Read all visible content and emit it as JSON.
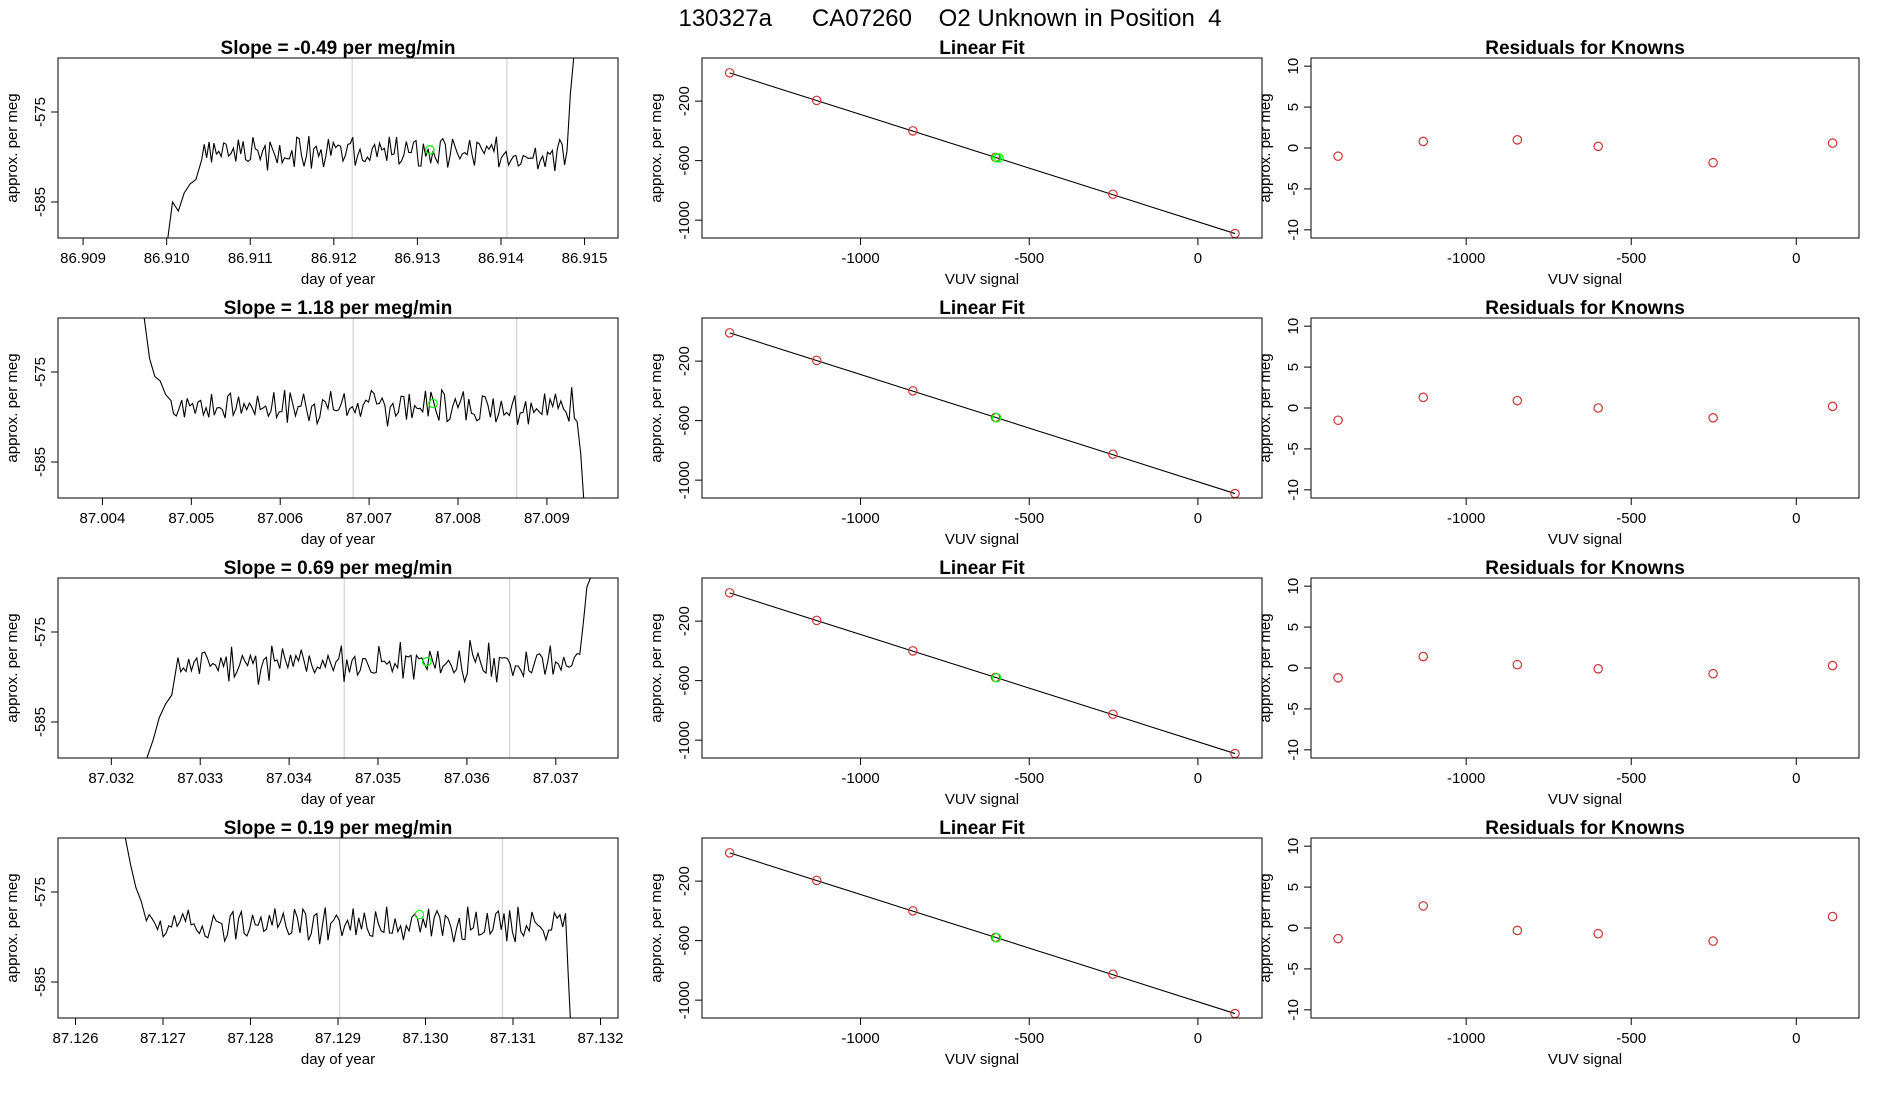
{
  "figure": {
    "title": "130327a      CA07260    O2 Unknown in Position  4"
  },
  "colors": {
    "trace": "#000000",
    "gridline": "#d3d3d3",
    "known_points": "#cd3333",
    "unknown_points": "#00ff00"
  },
  "chart_data": [
    {
      "type": "line",
      "row": 0,
      "col": 0,
      "title": "Slope =  -0.49  per meg/min",
      "xlabel": "day of year",
      "ylabel": "approx. per meg",
      "xlim": [
        86.9087,
        86.9154
      ],
      "ylim": [
        -589,
        -569
      ],
      "xticks": [
        86.909,
        86.91,
        86.911,
        86.912,
        86.913,
        86.914,
        86.915
      ],
      "xticklabels": [
        "86.909",
        "86.910",
        "86.911",
        "86.912",
        "86.913",
        "86.914",
        "86.915"
      ],
      "yticks": [
        -575,
        -585
      ],
      "yticklabels": [
        "-575",
        "-585"
      ],
      "vlines": [
        86.91222,
        86.91407
      ],
      "trace": {
        "start": 86.91,
        "end": 86.91483,
        "mean": -579.5,
        "amp": 1.8,
        "seed": 3,
        "lead": [
          -590,
          -585,
          -586,
          -584,
          -583,
          -582.5
        ],
        "lead_step": 7e-05,
        "tail": [
          -573,
          -569
        ],
        "tail_step": 4e-05
      },
      "highlight": {
        "x": 86.91315,
        "y": -579.2
      }
    },
    {
      "type": "scatter",
      "row": 0,
      "col": 1,
      "title": "Linear Fit",
      "xlabel": "VUV signal",
      "ylabel": "approx. per meg",
      "xlim": [
        -1470,
        190
      ],
      "ylim": [
        -1120,
        90
      ],
      "xticks": [
        -1000,
        -500,
        0
      ],
      "xticklabels": [
        "-1000",
        "-500",
        "0"
      ],
      "yticks": [
        -200,
        -600,
        -1000
      ],
      "yticklabels": [
        "-200",
        "-600",
        "-1000"
      ],
      "fit_line": {
        "x": [
          -1388,
          110
        ],
        "y": [
          -10,
          -1090
        ]
      },
      "knowns": {
        "x": [
          -1388,
          -1130,
          -845,
          -600,
          -252,
          110
        ],
        "y": [
          -10,
          -195,
          -400,
          -578,
          -826,
          -1090
        ]
      },
      "unknowns": {
        "x": [
          -597,
          -590
        ],
        "y": [
          -580,
          -581
        ]
      }
    },
    {
      "type": "scatter",
      "row": 0,
      "col": 2,
      "title": "Residuals for Knowns",
      "xlabel": "VUV signal",
      "ylabel": "approx. per meg",
      "xlim": [
        -1470,
        190
      ],
      "ylim": [
        -11,
        11
      ],
      "xticks": [
        -1000,
        -500,
        0
      ],
      "xticklabels": [
        "-1000",
        "-500",
        "0"
      ],
      "yticks": [
        10,
        5,
        0,
        -5,
        -10
      ],
      "yticklabels": [
        "10",
        "5",
        "0",
        "-5",
        "-10"
      ],
      "points": {
        "x": [
          -1388,
          -1130,
          -845,
          -600,
          -252,
          110
        ],
        "y": [
          -1.0,
          0.8,
          1.0,
          0.2,
          -1.8,
          0.6
        ]
      }
    },
    {
      "type": "line",
      "row": 1,
      "col": 0,
      "title": "Slope =  1.18  per meg/min",
      "xlabel": "day of year",
      "ylabel": "approx. per meg",
      "xlim": [
        87.0035,
        87.0098
      ],
      "ylim": [
        -589,
        -569
      ],
      "xticks": [
        87.004,
        87.005,
        87.006,
        87.007,
        87.008,
        87.009
      ],
      "xticklabels": [
        "87.004",
        "87.005",
        "87.006",
        "87.007",
        "87.008",
        "87.009"
      ],
      "yticks": [
        -575,
        -585
      ],
      "yticklabels": [
        "-575",
        "-585"
      ],
      "vlines": [
        87.00682,
        87.00866
      ],
      "trace": {
        "start": 87.00447,
        "end": 87.00938,
        "mean": -578.8,
        "amp": 1.9,
        "seed": 7,
        "lead": [
          -569,
          -573.5,
          -575.5,
          -576,
          -577.5
        ],
        "lead_step": 6e-05,
        "tail": [
          -584,
          -590
        ],
        "tail_step": 4e-05
      },
      "highlight": {
        "x": 87.00772,
        "y": -578.5
      }
    },
    {
      "type": "scatter",
      "row": 1,
      "col": 1,
      "title": "Linear Fit",
      "xlabel": "VUV signal",
      "ylabel": "approx. per meg",
      "xlim": [
        -1470,
        190
      ],
      "ylim": [
        -1120,
        90
      ],
      "xticks": [
        -1000,
        -500,
        0
      ],
      "xticklabels": [
        "-1000",
        "-500",
        "0"
      ],
      "yticks": [
        -200,
        -600,
        -1000
      ],
      "yticklabels": [
        "-200",
        "-600",
        "-1000"
      ],
      "fit_line": {
        "x": [
          -1388,
          110
        ],
        "y": [
          -10,
          -1090
        ]
      },
      "knowns": {
        "x": [
          -1388,
          -1130,
          -845,
          -600,
          -252,
          110
        ],
        "y": [
          -10,
          -195,
          -400,
          -578,
          -826,
          -1090
        ]
      },
      "unknowns": {
        "x": [
          -597
        ],
        "y": [
          -580
        ]
      }
    },
    {
      "type": "scatter",
      "row": 1,
      "col": 2,
      "title": "Residuals for Knowns",
      "xlabel": "VUV signal",
      "ylabel": "approx. per meg",
      "xlim": [
        -1470,
        190
      ],
      "ylim": [
        -11,
        11
      ],
      "xticks": [
        -1000,
        -500,
        0
      ],
      "xticklabels": [
        "-1000",
        "-500",
        "0"
      ],
      "yticks": [
        10,
        5,
        0,
        -5,
        -10
      ],
      "yticklabels": [
        "10",
        "5",
        "0",
        "-5",
        "-10"
      ],
      "points": {
        "x": [
          -1388,
          -1130,
          -845,
          -600,
          -252,
          110
        ],
        "y": [
          -1.5,
          1.3,
          0.9,
          0.0,
          -1.2,
          0.2
        ]
      }
    },
    {
      "type": "line",
      "row": 2,
      "col": 0,
      "title": "Slope =  0.69  per meg/min",
      "xlabel": "day of year",
      "ylabel": "approx. per meg",
      "xlim": [
        87.0314,
        87.0377
      ],
      "ylim": [
        -589,
        -569
      ],
      "xticks": [
        87.032,
        87.033,
        87.034,
        87.035,
        87.036,
        87.037
      ],
      "xticklabels": [
        "87.032",
        "87.033",
        "87.034",
        "87.035",
        "87.036",
        "87.037"
      ],
      "yticks": [
        -575,
        -585
      ],
      "yticklabels": [
        "-575",
        "-585"
      ],
      "vlines": [
        87.03462,
        87.03648
      ],
      "trace": {
        "start": 87.0324,
        "end": 87.03735,
        "mean": -578.5,
        "amp": 2.0,
        "seed": 11,
        "lead": [
          -589,
          -587,
          -584.5,
          -583,
          -582
        ],
        "lead_step": 7e-05,
        "tail": [
          -574,
          -570,
          -569
        ],
        "tail_step": 4e-05
      },
      "highlight": {
        "x": 87.03555,
        "y": -578.3
      }
    },
    {
      "type": "scatter",
      "row": 2,
      "col": 1,
      "title": "Linear Fit",
      "xlabel": "VUV signal",
      "ylabel": "approx. per meg",
      "xlim": [
        -1470,
        190
      ],
      "ylim": [
        -1120,
        90
      ],
      "xticks": [
        -1000,
        -500,
        0
      ],
      "xticklabels": [
        "-1000",
        "-500",
        "0"
      ],
      "yticks": [
        -200,
        -600,
        -1000
      ],
      "yticklabels": [
        "-200",
        "-600",
        "-1000"
      ],
      "fit_line": {
        "x": [
          -1388,
          110
        ],
        "y": [
          -10,
          -1090
        ]
      },
      "knowns": {
        "x": [
          -1388,
          -1130,
          -845,
          -600,
          -252,
          110
        ],
        "y": [
          -10,
          -195,
          -400,
          -578,
          -826,
          -1090
        ]
      },
      "unknowns": {
        "x": [
          -597
        ],
        "y": [
          -580
        ]
      }
    },
    {
      "type": "scatter",
      "row": 2,
      "col": 2,
      "title": "Residuals for Knowns",
      "xlabel": "VUV signal",
      "ylabel": "approx. per meg",
      "xlim": [
        -1470,
        190
      ],
      "ylim": [
        -11,
        11
      ],
      "xticks": [
        -1000,
        -500,
        0
      ],
      "xticklabels": [
        "-1000",
        "-500",
        "0"
      ],
      "yticks": [
        10,
        5,
        0,
        -5,
        -10
      ],
      "yticklabels": [
        "10",
        "5",
        "0",
        "-5",
        "-10"
      ],
      "points": {
        "x": [
          -1388,
          -1130,
          -845,
          -600,
          -252,
          110
        ],
        "y": [
          -1.2,
          1.4,
          0.4,
          -0.1,
          -0.7,
          0.3
        ]
      }
    },
    {
      "type": "line",
      "row": 3,
      "col": 0,
      "title": "Slope =  0.19  per meg/min",
      "xlabel": "day of year",
      "ylabel": "approx. per meg",
      "xlim": [
        87.1258,
        87.1322
      ],
      "ylim": [
        -589,
        -569
      ],
      "xticks": [
        87.126,
        87.127,
        87.128,
        87.129,
        87.13,
        87.131,
        87.132
      ],
      "xticklabels": [
        "87.126",
        "87.127",
        "87.128",
        "87.129",
        "87.130",
        "87.131",
        "87.132"
      ],
      "yticks": [
        -575,
        -585
      ],
      "yticklabels": [
        "-575",
        "-585"
      ],
      "vlines": [
        87.12902,
        87.13088
      ],
      "trace": {
        "start": 87.12657,
        "end": 87.13163,
        "mean": -578.6,
        "amp": 1.9,
        "seed": 19,
        "lead": [
          -569,
          -572,
          -574.5,
          -576
        ],
        "lead_step": 6e-05,
        "tail": [
          -584,
          -590
        ],
        "tail_step": 3e-05
      },
      "highlight": {
        "x": 87.12993,
        "y": -577.5
      }
    },
    {
      "type": "scatter",
      "row": 3,
      "col": 1,
      "title": "Linear Fit",
      "xlabel": "VUV signal",
      "ylabel": "approx. per meg",
      "xlim": [
        -1470,
        190
      ],
      "ylim": [
        -1120,
        90
      ],
      "xticks": [
        -1000,
        -500,
        0
      ],
      "xticklabels": [
        "-1000",
        "-500",
        "0"
      ],
      "yticks": [
        -200,
        -600,
        -1000
      ],
      "yticklabels": [
        "-200",
        "-600",
        "-1000"
      ],
      "fit_line": {
        "x": [
          -1388,
          110
        ],
        "y": [
          -10,
          -1090
        ]
      },
      "knowns": {
        "x": [
          -1388,
          -1130,
          -845,
          -600,
          -252,
          110
        ],
        "y": [
          -10,
          -195,
          -400,
          -578,
          -826,
          -1090
        ]
      },
      "unknowns": {
        "x": [
          -597
        ],
        "y": [
          -580
        ]
      }
    },
    {
      "type": "scatter",
      "row": 3,
      "col": 2,
      "title": "Residuals for Knowns",
      "xlabel": "VUV signal",
      "ylabel": "approx. per meg",
      "xlim": [
        -1470,
        190
      ],
      "ylim": [
        -11,
        11
      ],
      "xticks": [
        -1000,
        -500,
        0
      ],
      "xticklabels": [
        "-1000",
        "-500",
        "0"
      ],
      "yticks": [
        10,
        5,
        0,
        -5,
        -10
      ],
      "yticklabels": [
        "10",
        "5",
        "0",
        "-5",
        "-10"
      ],
      "points": {
        "x": [
          -1388,
          -1130,
          -845,
          -600,
          -252,
          110
        ],
        "y": [
          -1.3,
          2.7,
          -0.3,
          -0.7,
          -1.6,
          1.4
        ]
      }
    }
  ]
}
